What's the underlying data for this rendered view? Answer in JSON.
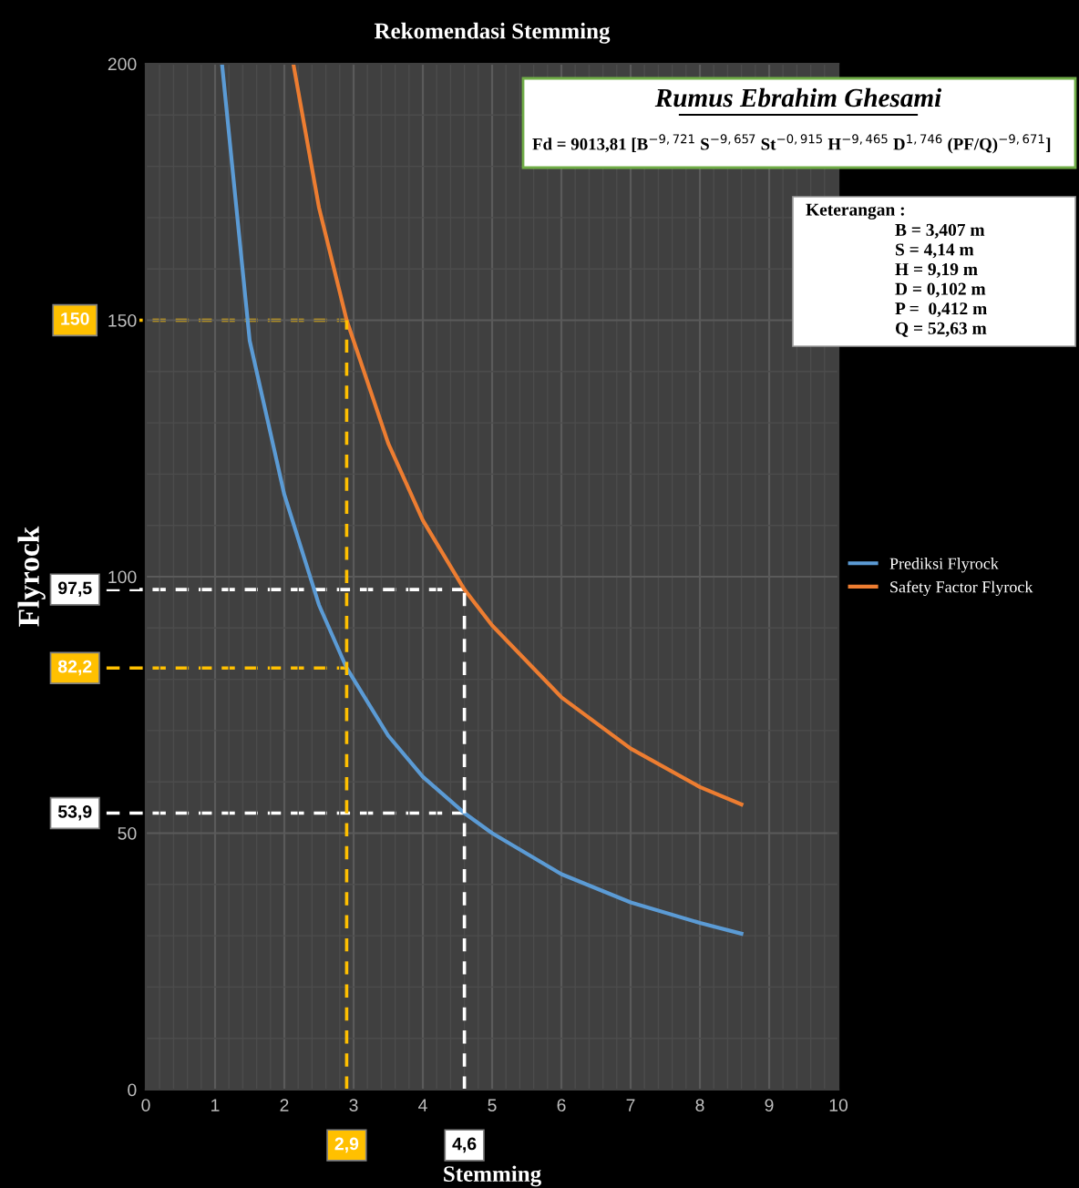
{
  "chart_data": {
    "type": "line",
    "title": "Rekomendasi Stemming",
    "xlabel": "Stemming",
    "ylabel": "Flyrock",
    "xlim": [
      0,
      10
    ],
    "ylim": [
      0,
      200
    ],
    "xticks": [
      0,
      1,
      2,
      3,
      4,
      5,
      6,
      7,
      8,
      9,
      10
    ],
    "yticks": [
      0,
      50,
      100,
      150,
      200
    ],
    "grid": true,
    "legend": "right",
    "line_style": "solid",
    "marker": "none",
    "series": [
      {
        "name": "Prediksi Flyrock",
        "color": "#5b9bd5",
        "x": [
          1.1,
          1.5,
          2,
          2.5,
          2.9,
          3.5,
          4,
          4.6,
          5,
          6,
          7,
          8,
          8.6
        ],
        "values": [
          200,
          146,
          116,
          94.5,
          82.2,
          69,
          61,
          53.9,
          50,
          42,
          36.5,
          32.5,
          30.4
        ]
      },
      {
        "name": "Safety Factor Flyrock",
        "color": "#ed7d31",
        "x": [
          2.13,
          2.5,
          2.9,
          3.5,
          4,
          4.6,
          5,
          6,
          7,
          8,
          8.6
        ],
        "values": [
          200,
          172,
          150,
          126,
          111,
          97.5,
          90.5,
          76.5,
          66.5,
          59,
          55.6
        ]
      }
    ],
    "ref_lines": [
      {
        "axis": "y",
        "value": 150,
        "label": "150",
        "color": "#ffc000",
        "line_style": "dashed"
      },
      {
        "axis": "y",
        "value": 82.2,
        "label": "82,2",
        "color": "#ffc000",
        "line_style": "dashed"
      },
      {
        "axis": "x",
        "value": 2.9,
        "label": "2,9",
        "color": "#ffc000",
        "line_style": "dashed"
      },
      {
        "axis": "y",
        "value": 97.5,
        "label": "97,5",
        "color": "#ffffff",
        "line_style": "dashed"
      },
      {
        "axis": "y",
        "value": 53.9,
        "label": "53,9",
        "color": "#ffffff",
        "line_style": "dashed"
      },
      {
        "axis": "x",
        "value": 4.6,
        "label": "4,6",
        "color": "#ffffff",
        "line_style": "dashed"
      }
    ],
    "annotations": [
      "Rumus Ebrahim Ghesami",
      "Fd = 9013,81 [B$^{−9,721}$ S$^{−9,657}$ St$^{−0,915}$ H$^{−9,465}$ D$^{1,746}$ (PF/Q)$^{−9,671}$]",
      "Keterangan :",
      "B = 3,407 m",
      "S = 4,14 m",
      "H = 9,19 m",
      "D = 0,102 m",
      "P =  0,412 m",
      "Q = 52,63 m"
    ]
  }
}
